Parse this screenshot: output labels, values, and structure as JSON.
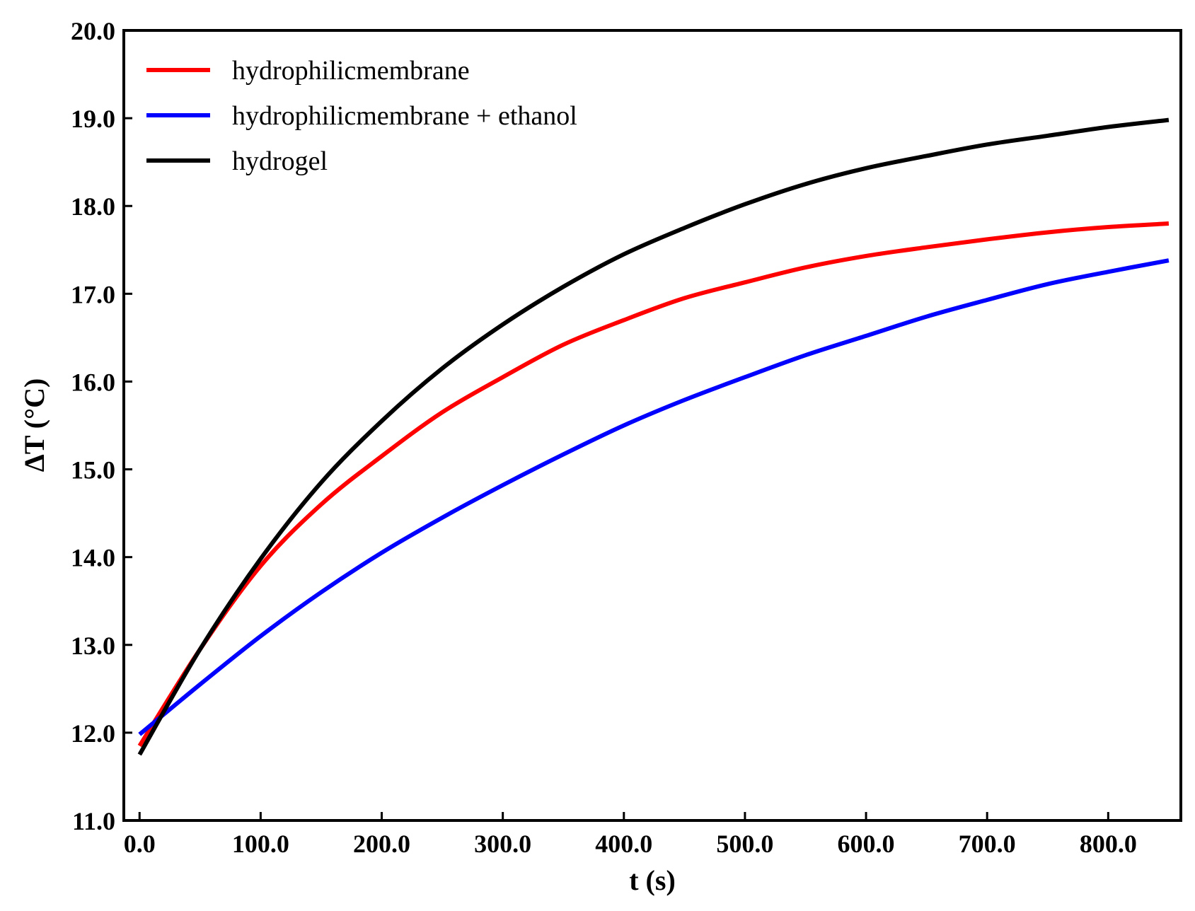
{
  "chart_data": {
    "type": "line",
    "xlabel": "t (s)",
    "ylabel": "ΔT (°C)",
    "xlim": [
      -13,
      860
    ],
    "ylim": [
      11.0,
      20.0
    ],
    "xticks": [
      0,
      100,
      200,
      300,
      400,
      500,
      600,
      700,
      800
    ],
    "xtick_labels": [
      "0.0",
      "100.0",
      "200.0",
      "300.0",
      "400.0",
      "500.0",
      "600.0",
      "700.0",
      "800.0"
    ],
    "yticks": [
      11,
      12,
      13,
      14,
      15,
      16,
      17,
      18,
      19,
      20
    ],
    "ytick_labels": [
      "11.0",
      "12.0",
      "13.0",
      "14.0",
      "15.0",
      "16.0",
      "17.0",
      "18.0",
      "19.0",
      "20.0"
    ],
    "legend_position": "top-left",
    "grid": false,
    "series": [
      {
        "name": "hydrophilicmembrane",
        "color": "#ff0000",
        "x": [
          0,
          50,
          100,
          150,
          200,
          250,
          300,
          350,
          400,
          450,
          500,
          550,
          600,
          650,
          700,
          750,
          800,
          850
        ],
        "y": [
          11.85,
          12.95,
          13.9,
          14.6,
          15.15,
          15.65,
          16.05,
          16.42,
          16.7,
          16.95,
          17.13,
          17.3,
          17.43,
          17.53,
          17.62,
          17.7,
          17.76,
          17.8
        ]
      },
      {
        "name": "hydrophilicmembrane + ethanol",
        "color": "#0000ff",
        "x": [
          0,
          50,
          100,
          150,
          200,
          250,
          300,
          350,
          400,
          450,
          500,
          550,
          600,
          650,
          700,
          750,
          800,
          850
        ],
        "y": [
          11.98,
          12.55,
          13.1,
          13.6,
          14.05,
          14.45,
          14.82,
          15.17,
          15.5,
          15.79,
          16.05,
          16.3,
          16.52,
          16.74,
          16.93,
          17.11,
          17.25,
          17.38
        ]
      },
      {
        "name": "hydrogel",
        "color": "#000000",
        "x": [
          0,
          50,
          100,
          150,
          200,
          250,
          300,
          350,
          400,
          450,
          500,
          550,
          600,
          650,
          700,
          750,
          800,
          850
        ],
        "y": [
          11.75,
          12.95,
          13.98,
          14.85,
          15.55,
          16.15,
          16.65,
          17.08,
          17.45,
          17.75,
          18.02,
          18.25,
          18.43,
          18.57,
          18.7,
          18.8,
          18.9,
          18.98
        ]
      }
    ]
  }
}
